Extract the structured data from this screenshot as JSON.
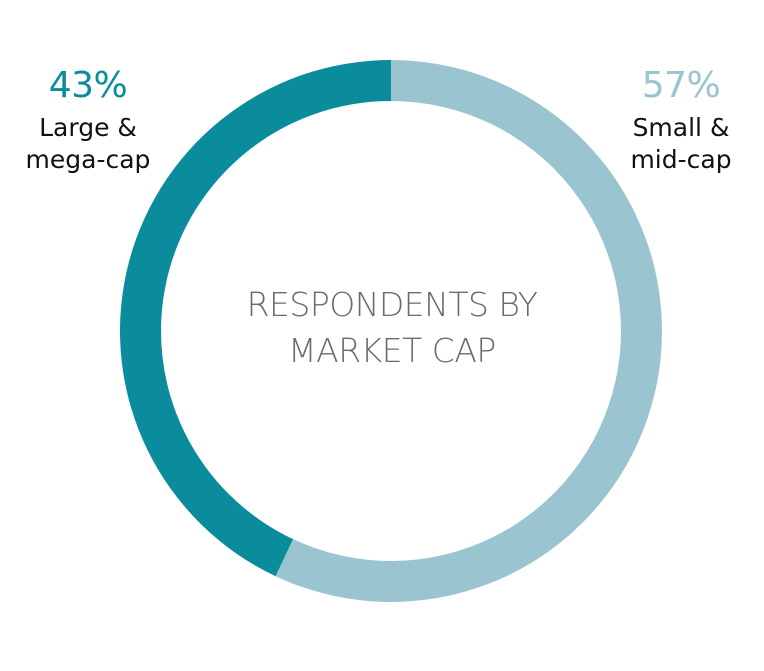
{
  "chart_data": {
    "type": "pie",
    "title_lines": [
      "RESPONDENTS BY",
      "MARKET CAP"
    ],
    "slices": [
      {
        "label_lines": [
          "Large &",
          "mega-cap"
        ],
        "value": 43,
        "value_label": "43%",
        "color": "#0a8c9c"
      },
      {
        "label_lines": [
          "Small &",
          "mid-cap"
        ],
        "value": 57,
        "value_label": "57%",
        "color": "#9ac4d0"
      }
    ]
  }
}
